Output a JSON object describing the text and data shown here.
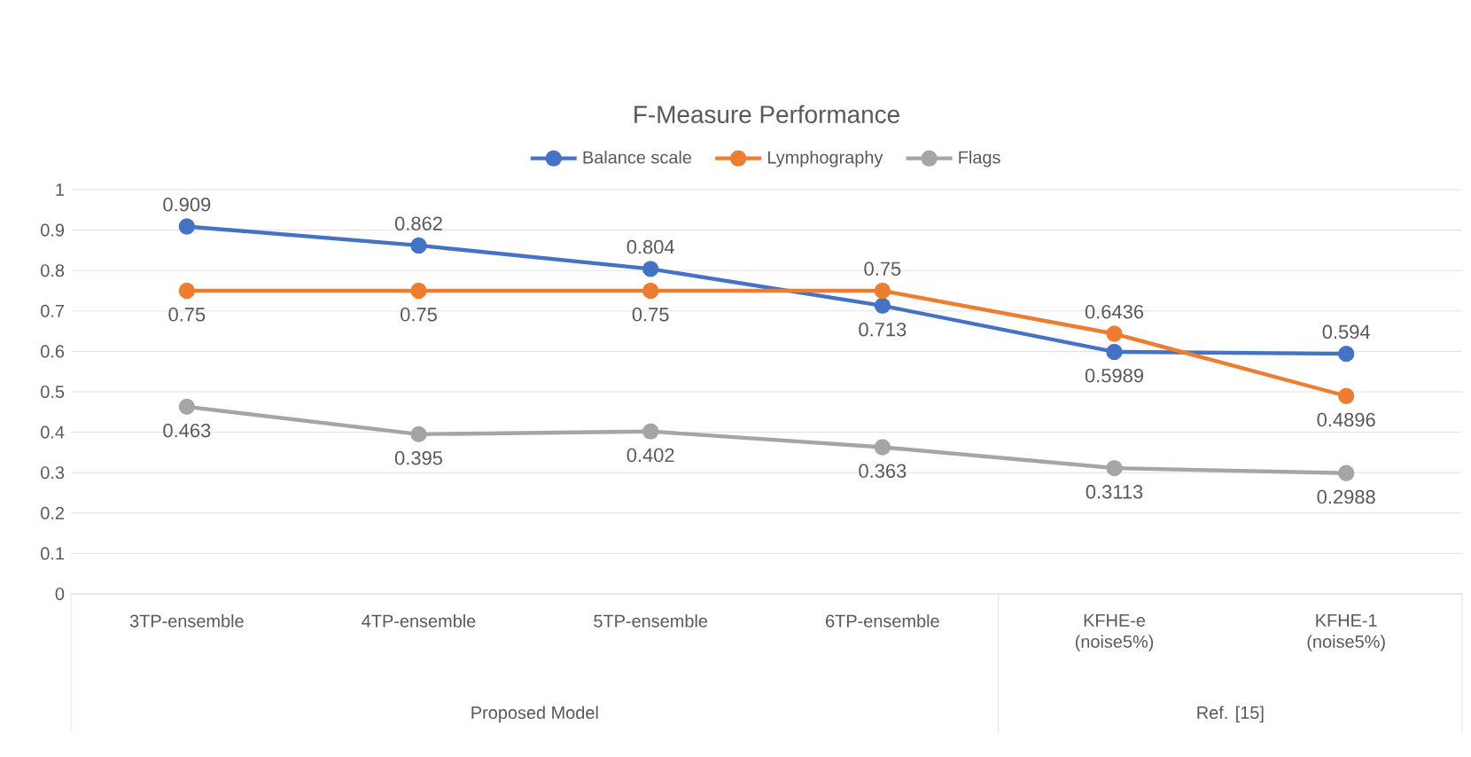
{
  "chart_data": {
    "type": "line",
    "title": "F-Measure Performance",
    "categories": [
      "3TP-ensemble",
      "4TP-ensemble",
      "5TP-ensemble",
      "6TP-ensemble",
      "KFHE-e (noise5%)",
      "KFHE-1 (noise5%)"
    ],
    "series": [
      {
        "name": "Balance scale",
        "color": "#4472c4",
        "values": [
          0.909,
          0.862,
          0.804,
          0.713,
          0.5989,
          0.594
        ]
      },
      {
        "name": "Lymphography",
        "color": "#ed7d31",
        "values": [
          0.75,
          0.75,
          0.75,
          0.75,
          0.6436,
          0.4896
        ]
      },
      {
        "name": "Flags",
        "color": "#a5a5a5",
        "values": [
          0.463,
          0.395,
          0.402,
          0.363,
          0.3113,
          0.2988
        ]
      }
    ],
    "ylim": [
      0,
      1
    ],
    "yticks": [
      0,
      0.1,
      0.2,
      0.3,
      0.4,
      0.5,
      0.6,
      0.7,
      0.8,
      0.9,
      1
    ],
    "grid": "y",
    "legend": "top",
    "marker": "circle",
    "line_style": "solid",
    "data_labels": true,
    "annotations": [
      "Proposed Model",
      "Ref. [15]"
    ]
  }
}
